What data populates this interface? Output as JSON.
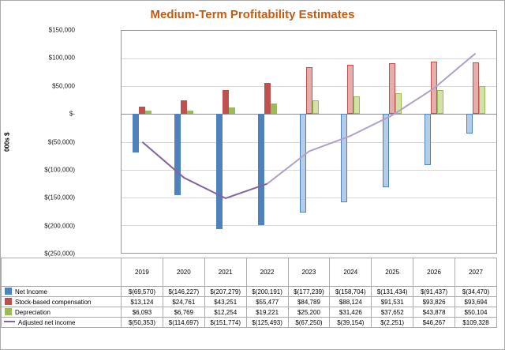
{
  "title": "Medium-Term Profitability Estimates",
  "title_color": "#C55A11",
  "y_axis_title": "000s $",
  "chart_data": {
    "type": "bar",
    "subtype": "clustered bars with overlay line; years 2023-2027 drawn in lighter estimate shading; data table with legend keys shown under plot",
    "title": "Medium-Term Profitability Estimates",
    "ylabel": "000s $",
    "grid": true,
    "legend_position": "data-table-left",
    "categories": [
      "2019",
      "2020",
      "2021",
      "2022",
      "2023",
      "2024",
      "2025",
      "2026",
      "2027"
    ],
    "estimate_start_index": 4,
    "ylim": [
      -250000,
      150000
    ],
    "ytick_step": 50000,
    "yticks": [
      {
        "value": 150000,
        "label": "$150,000"
      },
      {
        "value": 100000,
        "label": "$100,000"
      },
      {
        "value": 50000,
        "label": "$50,000"
      },
      {
        "value": 0,
        "label": "$-"
      },
      {
        "value": -50000,
        "label": "$(50,000)"
      },
      {
        "value": -100000,
        "label": "$(100,000)"
      },
      {
        "value": -150000,
        "label": "$(150,000)"
      },
      {
        "value": -200000,
        "label": "$(200,000)"
      },
      {
        "value": -250000,
        "label": "$(250,000)"
      }
    ],
    "series": [
      {
        "name": "Net Income",
        "type": "bar",
        "color": "#4F81BD",
        "light_color": "#B5CCE7",
        "values": [
          -69570,
          -146227,
          -207279,
          -200191,
          -177239,
          -158704,
          -131434,
          -91437,
          -34470
        ],
        "display_values": [
          "$(69,570)",
          "$(146,227)",
          "$(207,279)",
          "$(200,191)",
          "$(177,239)",
          "$(158,704)",
          "$(131,434)",
          "$(91,437)",
          "$(34,470)"
        ]
      },
      {
        "name": "Stock-based compensation",
        "type": "bar",
        "color": "#C0504D",
        "light_color": "#E5ADAB",
        "values": [
          13124,
          24761,
          43251,
          55477,
          84789,
          88124,
          91531,
          93826,
          93694
        ],
        "display_values": [
          "$13,124",
          "$24,761",
          "$43,251",
          "$55,477",
          "$84,789",
          "$88,124",
          "$91,531",
          "$93,826",
          "$93,694"
        ]
      },
      {
        "name": "Depreciation",
        "type": "bar",
        "color": "#9BBB59",
        "light_color": "#D3E0A8",
        "values": [
          6093,
          6769,
          12254,
          19221,
          25200,
          31426,
          37652,
          43878,
          50104
        ],
        "display_values": [
          "$6,093",
          "$6,769",
          "$12,254",
          "$19,221",
          "$25,200",
          "$31,426",
          "$37,652",
          "$43,878",
          "$50,104"
        ]
      },
      {
        "name": "Adjusted net income",
        "type": "line",
        "color": "#8064A2",
        "light_color": "#B2A1C7",
        "values": [
          -50353,
          -114697,
          -151774,
          -125493,
          -67250,
          -39154,
          -2251,
          46267,
          109328
        ],
        "display_values": [
          "$(50,353)",
          "$(114,697)",
          "$(151,774)",
          "$(125,493)",
          "$(67,250)",
          "$(39,154)",
          "$(2,251)",
          "$46,267",
          "$109,328"
        ]
      }
    ]
  }
}
